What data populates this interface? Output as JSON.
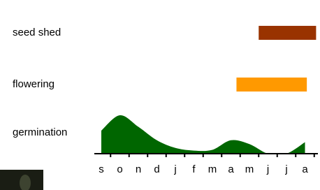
{
  "chart_data": {
    "type": "phenology",
    "categories": [
      "s",
      "o",
      "n",
      "d",
      "j",
      "f",
      "m",
      "a",
      "m",
      "j",
      "j",
      "a"
    ],
    "series": [
      {
        "name": "seed shed",
        "color": "#993300",
        "start": 8.5,
        "end": 11.6
      },
      {
        "name": "flowering",
        "color": "#ff9900",
        "start": 7.3,
        "end": 11.1
      }
    ],
    "germination": {
      "name": "germination",
      "color": "#006600",
      "values": [
        6,
        10,
        7,
        3.5,
        1.5,
        0.8,
        1,
        3.5,
        2.5,
        0,
        0,
        3
      ]
    },
    "ylim": [
      0,
      10
    ]
  }
}
